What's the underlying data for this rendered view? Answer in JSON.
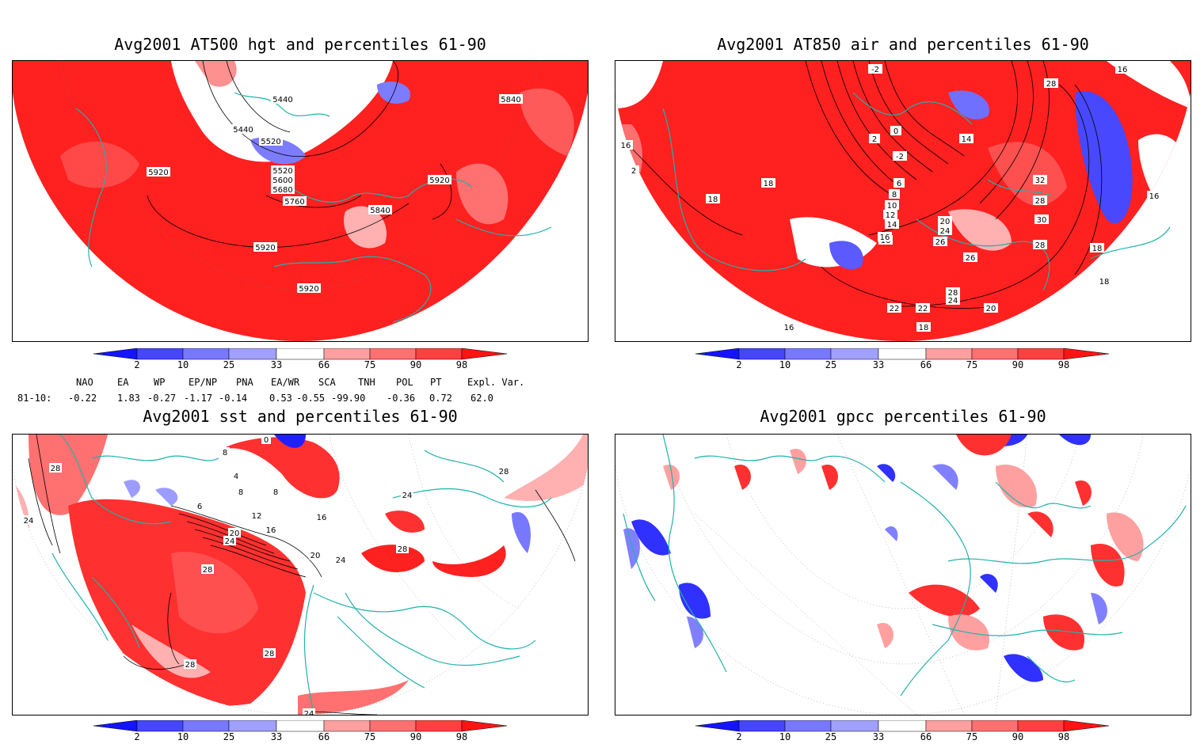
{
  "panels": [
    {
      "title": "Avg2001 AT500 hgt and percentiles 61-90",
      "contour_labels": [
        "5440",
        "5440",
        "5520",
        "5520",
        "5600",
        "5680",
        "5760",
        "5840",
        "5840",
        "5920",
        "5920",
        "5920",
        "5920"
      ]
    },
    {
      "title": "Avg2001 AT850 air and percentiles 61-90",
      "contour_labels": [
        "-2",
        "2",
        "0",
        "-2",
        "2",
        "14",
        "6",
        "8",
        "10",
        "12",
        "14",
        "16",
        "18",
        "18",
        "20",
        "22",
        "24",
        "24",
        "26",
        "28",
        "28",
        "30",
        "32",
        "16",
        "16",
        "16",
        "18",
        "18",
        "20",
        "22",
        "26",
        "28",
        "28",
        "16",
        "16",
        "18"
      ]
    },
    {
      "title": "Avg2001 sst and percentiles 61-90",
      "contour_labels": [
        "28",
        "24",
        "0",
        "8",
        "4",
        "6",
        "8",
        "8",
        "12",
        "16",
        "16",
        "20",
        "24",
        "24",
        "20",
        "28",
        "28",
        "28",
        "24",
        "28",
        "28",
        "24"
      ]
    },
    {
      "title": "Avg2001 gpcc percentiles 61-90",
      "contour_labels": []
    }
  ],
  "colorbar": {
    "labels": [
      "2",
      "10",
      "25",
      "33",
      "66",
      "75",
      "90",
      "98"
    ],
    "colors": [
      "#1414ff",
      "#4646ff",
      "#7878ff",
      "#a0a0ff",
      "#ffffff",
      "#ffa0a0",
      "#ff7070",
      "#ff4040",
      "#ff1414"
    ]
  },
  "indices": {
    "headers": [
      "NAO",
      "EA",
      "WP",
      "EP/NP",
      "PNA",
      "EA/WR",
      "SCA",
      "TNH",
      "POL",
      "PT",
      "Expl. Var."
    ],
    "row_label": "81-10:",
    "values": [
      "-0.22",
      "1.83",
      "-0.27",
      "-1.17",
      "-0.14",
      "0.53",
      "-0.55",
      "-99.90",
      "-0.36",
      "0.72",
      "62.0"
    ]
  },
  "colors": {
    "red": "#ff1f1f",
    "light_red": "#ff8080",
    "mid_red": "#ff5050",
    "blue": "#3c3cff",
    "light_blue": "#9c9cff",
    "coast": "#20b2aa",
    "contour": "#000000"
  }
}
